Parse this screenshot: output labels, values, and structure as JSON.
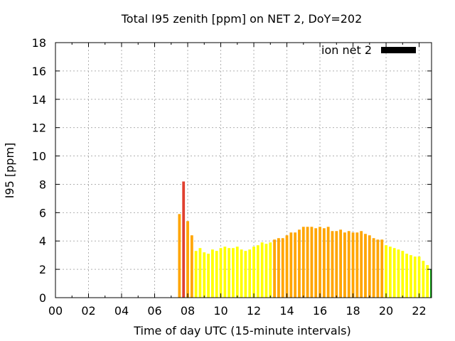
{
  "chart_data": {
    "type": "bar",
    "title": "Total I95 zenith [ppm] on NET 2, DoY=202",
    "xlabel": "Time of day UTC (15-minute intervals)",
    "ylabel": "I95 [ppm]",
    "xlim": [
      0,
      22.75
    ],
    "ylim": [
      0,
      18
    ],
    "x_ticks": [
      0,
      2,
      4,
      6,
      8,
      10,
      12,
      14,
      16,
      18,
      20,
      22
    ],
    "x_tick_labels": [
      "00",
      "02",
      "04",
      "06",
      "08",
      "10",
      "12",
      "14",
      "16",
      "18",
      "20",
      "22"
    ],
    "y_ticks": [
      0,
      2,
      4,
      6,
      8,
      10,
      12,
      14,
      16,
      18
    ],
    "y_tick_labels": [
      "0",
      "2",
      "4",
      "6",
      "8",
      "10",
      "12",
      "14",
      "16",
      "18"
    ],
    "grid": true,
    "legend": {
      "position": "top-right",
      "entries": [
        {
          "label": "ion net 2",
          "color": "#000000"
        }
      ]
    },
    "colors": {
      "yellow": "#ffff00",
      "orange": "#ffa500",
      "red": "#e04030",
      "green": "#00a000"
    },
    "series": [
      {
        "x": [
          7.5,
          7.75,
          8.0,
          8.25,
          8.5,
          8.75,
          9.0,
          9.25,
          9.5,
          9.75,
          10.0,
          10.25,
          10.5,
          10.75,
          11.0,
          11.25,
          11.5,
          11.75,
          12.0,
          12.25,
          12.5,
          12.75,
          13.0,
          13.25,
          13.5,
          13.75,
          14.0,
          14.25,
          14.5,
          14.75,
          15.0,
          15.25,
          15.5,
          15.75,
          16.0,
          16.25,
          16.5,
          16.75,
          17.0,
          17.25,
          17.5,
          17.75,
          18.0,
          18.25,
          18.5,
          18.75,
          19.0,
          19.25,
          19.5,
          19.75,
          20.0,
          20.25,
          20.5,
          20.75,
          21.0,
          21.25,
          21.5,
          21.75,
          22.0,
          22.25,
          22.5,
          22.75
        ],
        "values": [
          5.9,
          8.2,
          5.4,
          4.4,
          3.3,
          3.5,
          3.2,
          3.1,
          3.4,
          3.3,
          3.5,
          3.6,
          3.5,
          3.5,
          3.6,
          3.4,
          3.3,
          3.4,
          3.6,
          3.7,
          3.9,
          3.8,
          3.9,
          4.1,
          4.2,
          4.2,
          4.4,
          4.6,
          4.6,
          4.8,
          5.0,
          5.0,
          5.0,
          4.9,
          5.0,
          4.9,
          5.0,
          4.7,
          4.7,
          4.8,
          4.6,
          4.7,
          4.6,
          4.6,
          4.7,
          4.5,
          4.4,
          4.2,
          4.1,
          4.1,
          3.7,
          3.6,
          3.5,
          3.4,
          3.3,
          3.1,
          3.0,
          2.9,
          2.9,
          2.6,
          2.3,
          2.0
        ],
        "colors": [
          "#ffa500",
          "#e04030",
          "#ffa500",
          "#ffa500",
          "#ffff00",
          "#ffff00",
          "#ffff00",
          "#ffff00",
          "#ffff00",
          "#ffff00",
          "#ffff00",
          "#ffff00",
          "#ffff00",
          "#ffff00",
          "#ffff00",
          "#ffff00",
          "#ffff00",
          "#ffff00",
          "#ffff00",
          "#ffff00",
          "#ffff00",
          "#ffff00",
          "#ffff00",
          "#ffa500",
          "#ffa500",
          "#ffa500",
          "#ffa500",
          "#ffa500",
          "#ffa500",
          "#ffa500",
          "#ffa500",
          "#ffa500",
          "#ffa500",
          "#ffa500",
          "#ffa500",
          "#ffa500",
          "#ffa500",
          "#ffa500",
          "#ffa500",
          "#ffa500",
          "#ffa500",
          "#ffa500",
          "#ffa500",
          "#ffa500",
          "#ffa500",
          "#ffa500",
          "#ffa500",
          "#ffa500",
          "#ffa500",
          "#ffa500",
          "#ffff00",
          "#ffff00",
          "#ffff00",
          "#ffff00",
          "#ffff00",
          "#ffff00",
          "#ffff00",
          "#ffff00",
          "#ffff00",
          "#ffff00",
          "#ffff00",
          "#00a000"
        ]
      }
    ]
  }
}
